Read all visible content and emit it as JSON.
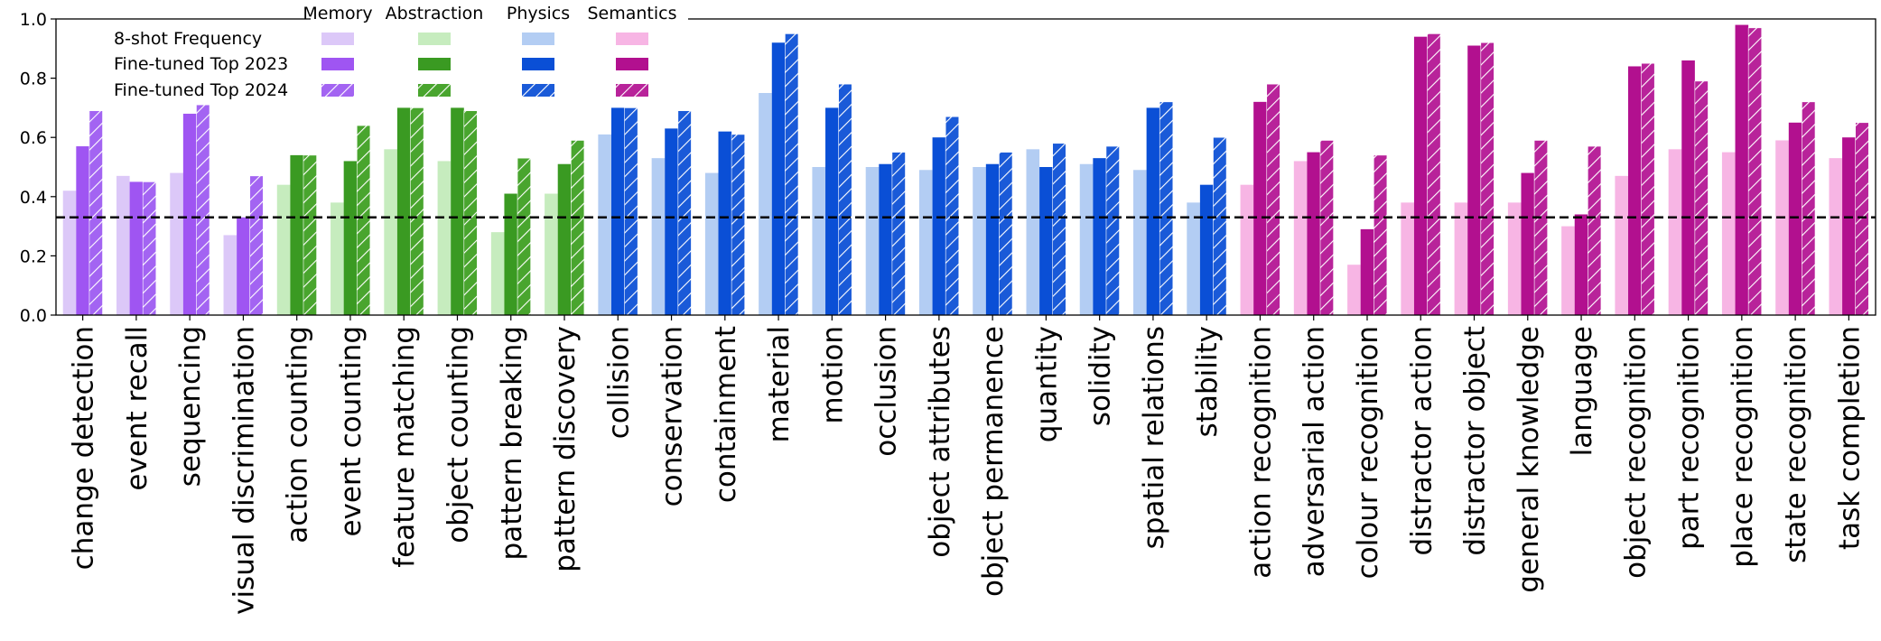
{
  "chart_data": {
    "type": "bar",
    "title": "",
    "xlabel": "",
    "ylabel": "",
    "ylim": [
      0,
      1.0
    ],
    "yticks": [
      "0.0",
      "0.2",
      "0.4",
      "0.6",
      "0.8",
      "1.0"
    ],
    "reference_line": {
      "y": 0.33,
      "style": "dashed",
      "color": "#000000"
    },
    "grid": false,
    "legend": {
      "placement": "top-left",
      "row_labels": [
        "8-shot Frequency",
        "Fine-tuned Top 2023",
        "Fine-tuned Top 2024"
      ],
      "column_labels": [
        "Memory",
        "Abstraction",
        "Physics",
        "Semantics"
      ]
    },
    "groups": [
      {
        "name": "Memory",
        "colors": {
          "light": "#dcc8f8",
          "solid": "#9f55f2",
          "hatched": "#a364f2"
        }
      },
      {
        "name": "Abstraction",
        "colors": {
          "light": "#c6ecbe",
          "solid": "#3a9a22",
          "hatched": "#49a52e"
        }
      },
      {
        "name": "Physics",
        "colors": {
          "light": "#b3cdf3",
          "solid": "#0a4fd6",
          "hatched": "#1a5ad8"
        }
      },
      {
        "name": "Semantics",
        "colors": {
          "light": "#f7b5e4",
          "solid": "#b2108f",
          "hatched": "#b8239a"
        }
      }
    ],
    "series_names": [
      "8-shot Frequency",
      "Fine-tuned Top 2023",
      "Fine-tuned Top 2024"
    ],
    "categories": [
      {
        "label": "change detection",
        "group": 0,
        "values": [
          0.42,
          0.57,
          0.69
        ]
      },
      {
        "label": "event recall",
        "group": 0,
        "values": [
          0.47,
          0.45,
          0.45
        ]
      },
      {
        "label": "sequencing",
        "group": 0,
        "values": [
          0.48,
          0.68,
          0.71
        ]
      },
      {
        "label": "visual discrimination",
        "group": 0,
        "values": [
          0.27,
          0.33,
          0.47
        ]
      },
      {
        "label": "action counting",
        "group": 1,
        "values": [
          0.44,
          0.54,
          0.54
        ]
      },
      {
        "label": "event counting",
        "group": 1,
        "values": [
          0.38,
          0.52,
          0.64
        ]
      },
      {
        "label": "feature matching",
        "group": 1,
        "values": [
          0.56,
          0.7,
          0.7
        ]
      },
      {
        "label": "object counting",
        "group": 1,
        "values": [
          0.52,
          0.7,
          0.69
        ]
      },
      {
        "label": "pattern breaking",
        "group": 1,
        "values": [
          0.28,
          0.41,
          0.53
        ]
      },
      {
        "label": "pattern discovery",
        "group": 1,
        "values": [
          0.41,
          0.51,
          0.59
        ]
      },
      {
        "label": "collision",
        "group": 2,
        "values": [
          0.61,
          0.7,
          0.7
        ]
      },
      {
        "label": "conservation",
        "group": 2,
        "values": [
          0.53,
          0.63,
          0.69
        ]
      },
      {
        "label": "containment",
        "group": 2,
        "values": [
          0.48,
          0.62,
          0.61
        ]
      },
      {
        "label": "material",
        "group": 2,
        "values": [
          0.75,
          0.92,
          0.95
        ]
      },
      {
        "label": "motion",
        "group": 2,
        "values": [
          0.5,
          0.7,
          0.78
        ]
      },
      {
        "label": "occlusion",
        "group": 2,
        "values": [
          0.5,
          0.51,
          0.55
        ]
      },
      {
        "label": "object attributes",
        "group": 2,
        "values": [
          0.49,
          0.6,
          0.67
        ]
      },
      {
        "label": "object permanence",
        "group": 2,
        "values": [
          0.5,
          0.51,
          0.55
        ]
      },
      {
        "label": "quantity",
        "group": 2,
        "values": [
          0.56,
          0.5,
          0.58
        ]
      },
      {
        "label": "solidity",
        "group": 2,
        "values": [
          0.51,
          0.53,
          0.57
        ]
      },
      {
        "label": "spatial relations",
        "group": 2,
        "values": [
          0.49,
          0.7,
          0.72
        ]
      },
      {
        "label": "stability",
        "group": 2,
        "values": [
          0.38,
          0.44,
          0.6
        ]
      },
      {
        "label": "action recognition",
        "group": 3,
        "values": [
          0.44,
          0.72,
          0.78
        ]
      },
      {
        "label": "adversarial action",
        "group": 3,
        "values": [
          0.52,
          0.55,
          0.59
        ]
      },
      {
        "label": "colour recognition",
        "group": 3,
        "values": [
          0.17,
          0.29,
          0.54
        ]
      },
      {
        "label": "distractor action",
        "group": 3,
        "values": [
          0.38,
          0.94,
          0.95
        ]
      },
      {
        "label": "distractor object",
        "group": 3,
        "values": [
          0.38,
          0.91,
          0.92
        ]
      },
      {
        "label": "general knowledge",
        "group": 3,
        "values": [
          0.38,
          0.48,
          0.59
        ]
      },
      {
        "label": "language",
        "group": 3,
        "values": [
          0.3,
          0.34,
          0.57
        ]
      },
      {
        "label": "object recognition",
        "group": 3,
        "values": [
          0.47,
          0.84,
          0.85
        ]
      },
      {
        "label": "part recognition",
        "group": 3,
        "values": [
          0.56,
          0.86,
          0.79
        ]
      },
      {
        "label": "place recognition",
        "group": 3,
        "values": [
          0.55,
          0.98,
          0.97
        ]
      },
      {
        "label": "state recognition",
        "group": 3,
        "values": [
          0.59,
          0.65,
          0.72
        ]
      },
      {
        "label": "task completion",
        "group": 3,
        "values": [
          0.53,
          0.6,
          0.65
        ]
      }
    ]
  }
}
